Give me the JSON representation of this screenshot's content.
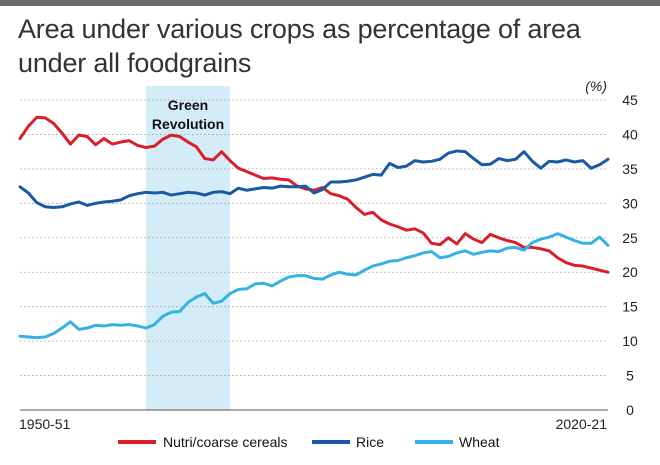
{
  "chart_data": {
    "type": "line",
    "title": "Area under various crops as percentage of area under all foodgrains",
    "unit": "(%)",
    "ylim": [
      0,
      45
    ],
    "yticks": [
      0,
      5,
      10,
      15,
      20,
      25,
      30,
      35,
      40,
      45
    ],
    "x_start_label": "1950-51",
    "x_end_label": "2020-21",
    "x_range": [
      1950,
      2020
    ],
    "grid": true,
    "legend_position": "bottom",
    "highlight_band": {
      "label_line1": "Green",
      "label_line2": "Revolution",
      "from": 1965,
      "to": 1975,
      "color": "#d4ecf8"
    },
    "series": [
      {
        "name": "Nutri/coarse cereals",
        "color": "#d91f2b",
        "x": [
          1950,
          1951,
          1952,
          1953,
          1954,
          1955,
          1956,
          1957,
          1958,
          1959,
          1960,
          1961,
          1962,
          1963,
          1964,
          1965,
          1966,
          1967,
          1968,
          1969,
          1970,
          1971,
          1972,
          1973,
          1974,
          1975,
          1976,
          1977,
          1978,
          1979,
          1980,
          1981,
          1982,
          1983,
          1984,
          1985,
          1986,
          1987,
          1988,
          1989,
          1990,
          1991,
          1992,
          1993,
          1994,
          1995,
          1996,
          1997,
          1998,
          1999,
          2000,
          2001,
          2002,
          2003,
          2004,
          2005,
          2006,
          2007,
          2008,
          2009,
          2010,
          2011,
          2012,
          2013,
          2014,
          2015,
          2016,
          2017,
          2018,
          2019,
          2020
        ],
        "values": [
          39.4,
          41.2,
          42.5,
          42.4,
          41.6,
          40.2,
          38.6,
          39.9,
          39.7,
          38.5,
          39.4,
          38.6,
          38.9,
          39.1,
          38.4,
          38.1,
          38.3,
          39.3,
          39.9,
          39.7,
          38.9,
          38.2,
          36.5,
          36.3,
          37.5,
          36.2,
          35.1,
          34.6,
          34.1,
          33.6,
          33.7,
          33.5,
          33.4,
          32.5,
          32.1,
          31.9,
          32.3,
          31.4,
          31.1,
          30.6,
          29.4,
          28.4,
          28.7,
          27.6,
          27.0,
          26.6,
          26.1,
          26.3,
          25.7,
          24.2,
          24.0,
          25.0,
          24.1,
          25.6,
          24.8,
          24.3,
          25.5,
          25.0,
          24.6,
          24.3,
          23.6,
          23.6,
          23.4,
          23.1,
          22.1,
          21.4,
          21.0,
          20.9,
          20.6,
          20.3,
          20.0
        ]
      },
      {
        "name": "Rice",
        "color": "#1a5aa3",
        "x": [
          1950,
          1951,
          1952,
          1953,
          1954,
          1955,
          1956,
          1957,
          1958,
          1959,
          1960,
          1961,
          1962,
          1963,
          1964,
          1965,
          1966,
          1967,
          1968,
          1969,
          1970,
          1971,
          1972,
          1973,
          1974,
          1975,
          1976,
          1977,
          1978,
          1979,
          1980,
          1981,
          1982,
          1983,
          1984,
          1985,
          1986,
          1987,
          1988,
          1989,
          1990,
          1991,
          1992,
          1993,
          1994,
          1995,
          1996,
          1997,
          1998,
          1999,
          2000,
          2001,
          2002,
          2003,
          2004,
          2005,
          2006,
          2007,
          2008,
          2009,
          2010,
          2011,
          2012,
          2013,
          2014,
          2015,
          2016,
          2017,
          2018,
          2019,
          2020
        ],
        "values": [
          32.4,
          31.5,
          30.1,
          29.5,
          29.4,
          29.5,
          29.9,
          30.2,
          29.7,
          30.0,
          30.2,
          30.3,
          30.5,
          31.1,
          31.4,
          31.6,
          31.5,
          31.6,
          31.2,
          31.4,
          31.6,
          31.5,
          31.2,
          31.6,
          31.7,
          31.4,
          32.2,
          31.9,
          32.1,
          32.3,
          32.2,
          32.5,
          32.4,
          32.4,
          32.5,
          31.5,
          32.0,
          33.1,
          33.1,
          33.2,
          33.4,
          33.8,
          34.2,
          34.1,
          35.8,
          35.2,
          35.4,
          36.2,
          36.0,
          36.1,
          36.4,
          37.3,
          37.6,
          37.5,
          36.5,
          35.6,
          35.7,
          36.5,
          36.2,
          36.4,
          37.5,
          36.1,
          35.1,
          36.1,
          36.0,
          36.3,
          36.0,
          36.2,
          35.1,
          35.6,
          36.4
        ]
      },
      {
        "name": "Wheat",
        "color": "#35b2e2",
        "x": [
          1950,
          1951,
          1952,
          1953,
          1954,
          1955,
          1956,
          1957,
          1958,
          1959,
          1960,
          1961,
          1962,
          1963,
          1964,
          1965,
          1966,
          1967,
          1968,
          1969,
          1970,
          1971,
          1972,
          1973,
          1974,
          1975,
          1976,
          1977,
          1978,
          1979,
          1980,
          1981,
          1982,
          1983,
          1984,
          1985,
          1986,
          1987,
          1988,
          1989,
          1990,
          1991,
          1992,
          1993,
          1994,
          1995,
          1996,
          1997,
          1998,
          1999,
          2000,
          2001,
          2002,
          2003,
          2004,
          2005,
          2006,
          2007,
          2008,
          2009,
          2010,
          2011,
          2012,
          2013,
          2014,
          2015,
          2016,
          2017,
          2018,
          2019,
          2020
        ],
        "values": [
          10.7,
          10.6,
          10.5,
          10.6,
          11.1,
          11.9,
          12.8,
          11.7,
          11.9,
          12.3,
          12.2,
          12.4,
          12.3,
          12.4,
          12.2,
          11.9,
          12.4,
          13.6,
          14.2,
          14.3,
          15.6,
          16.4,
          16.9,
          15.5,
          15.8,
          16.9,
          17.5,
          17.6,
          18.3,
          18.4,
          18.0,
          18.7,
          19.3,
          19.5,
          19.5,
          19.1,
          19.0,
          19.6,
          20.0,
          19.7,
          19.6,
          20.3,
          20.9,
          21.2,
          21.6,
          21.7,
          22.1,
          22.4,
          22.8,
          23.0,
          22.1,
          22.3,
          22.8,
          23.1,
          22.6,
          22.9,
          23.1,
          23.0,
          23.5,
          23.6,
          23.2,
          24.3,
          24.8,
          25.1,
          25.6,
          25.1,
          24.6,
          24.2,
          24.2,
          25.1,
          23.9
        ]
      }
    ]
  }
}
